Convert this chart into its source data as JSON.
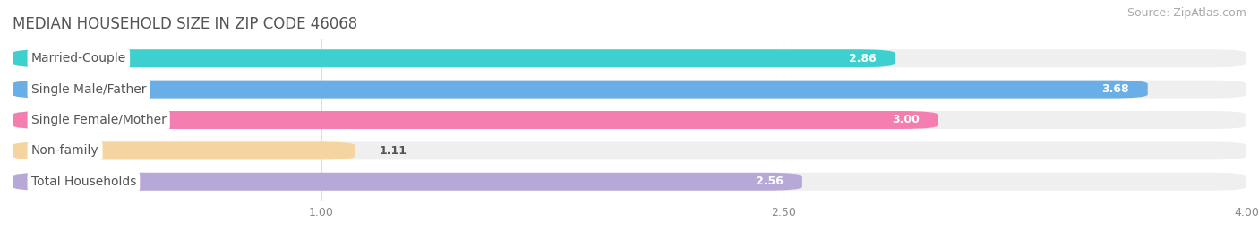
{
  "title": "MEDIAN HOUSEHOLD SIZE IN ZIP CODE 46068",
  "source": "Source: ZipAtlas.com",
  "categories": [
    "Married-Couple",
    "Single Male/Father",
    "Single Female/Mother",
    "Non-family",
    "Total Households"
  ],
  "values": [
    2.86,
    3.68,
    3.0,
    1.11,
    2.56
  ],
  "bar_colors": [
    "#3ecfcf",
    "#6aaee8",
    "#f47eb0",
    "#f5d4a0",
    "#b8a8d8"
  ],
  "track_color": "#efefef",
  "xlim": [
    0,
    4.0
  ],
  "xticks": [
    1.0,
    2.5,
    4.0
  ],
  "title_fontsize": 12,
  "source_fontsize": 9,
  "label_fontsize": 10,
  "value_fontsize": 9,
  "bar_height": 0.58,
  "background_color": "#ffffff",
  "label_text_color": "#555555",
  "value_color_inside": "white",
  "value_color_outside": "#555555",
  "grid_color": "#dddddd"
}
